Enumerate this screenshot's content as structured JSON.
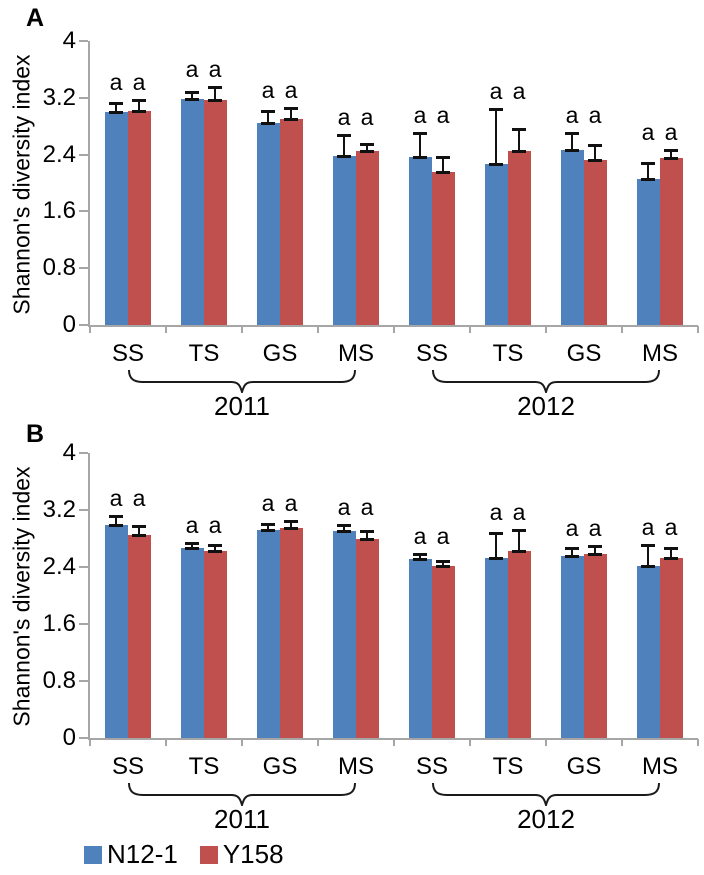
{
  "legend": {
    "items": [
      {
        "label": "N12-1",
        "color": "#4f81bd"
      },
      {
        "label": "Y158",
        "color": "#c0504d"
      }
    ]
  },
  "chart_data": [
    {
      "panel": "A",
      "type": "bar",
      "title": "",
      "xlabel": "",
      "ylabel": "Shannon's diversity index",
      "ylim": [
        0,
        4
      ],
      "ytick_labels": [
        "0",
        "0.8",
        "1.6",
        "2.4",
        "3.2",
        "4"
      ],
      "ytick_values": [
        0,
        0.8,
        1.6,
        2.4,
        3.2,
        4
      ],
      "categories": [
        "SS",
        "TS",
        "GS",
        "MS",
        "SS",
        "TS",
        "GS",
        "MS"
      ],
      "year_spans": [
        {
          "label": "2011",
          "from": 0,
          "to": 3
        },
        {
          "label": "2012",
          "from": 4,
          "to": 7
        }
      ],
      "sig_label": "a",
      "grid": false,
      "legend_position": "bottom-left",
      "series": [
        {
          "name": "N12-1",
          "color": "#4f81bd",
          "values": [
            3.0,
            3.18,
            2.85,
            2.38,
            2.36,
            2.27,
            2.47,
            2.06
          ],
          "errors": [
            0.12,
            0.1,
            0.17,
            0.3,
            0.35,
            0.77,
            0.24,
            0.22
          ]
        },
        {
          "name": "Y158",
          "color": "#c0504d",
          "values": [
            3.02,
            3.17,
            2.9,
            2.45,
            2.16,
            2.45,
            2.33,
            2.35
          ],
          "errors": [
            0.15,
            0.18,
            0.16,
            0.1,
            0.21,
            0.31,
            0.21,
            0.12
          ]
        }
      ]
    },
    {
      "panel": "B",
      "type": "bar",
      "title": "",
      "xlabel": "",
      "ylabel": "Shannon's diversity index",
      "ylim": [
        0,
        4
      ],
      "ytick_labels": [
        "0",
        "0.8",
        "1.6",
        "2.4",
        "3.2",
        "4"
      ],
      "ytick_values": [
        0,
        0.8,
        1.6,
        2.4,
        3.2,
        4
      ],
      "categories": [
        "SS",
        "TS",
        "GS",
        "MS",
        "SS",
        "TS",
        "GS",
        "MS"
      ],
      "year_spans": [
        {
          "label": "2011",
          "from": 0,
          "to": 3
        },
        {
          "label": "2012",
          "from": 4,
          "to": 7
        }
      ],
      "sig_label": "a",
      "grid": false,
      "legend_position": "bottom-left",
      "series": [
        {
          "name": "N12-1",
          "color": "#4f81bd",
          "values": [
            2.99,
            2.66,
            2.92,
            2.91,
            2.51,
            2.53,
            2.55,
            2.42
          ],
          "errors": [
            0.12,
            0.08,
            0.08,
            0.08,
            0.07,
            0.35,
            0.11,
            0.29
          ]
        },
        {
          "name": "Y158",
          "color": "#c0504d",
          "values": [
            2.85,
            2.62,
            2.95,
            2.79,
            2.41,
            2.63,
            2.58,
            2.53
          ],
          "errors": [
            0.12,
            0.09,
            0.1,
            0.11,
            0.07,
            0.29,
            0.11,
            0.13
          ]
        }
      ]
    }
  ]
}
